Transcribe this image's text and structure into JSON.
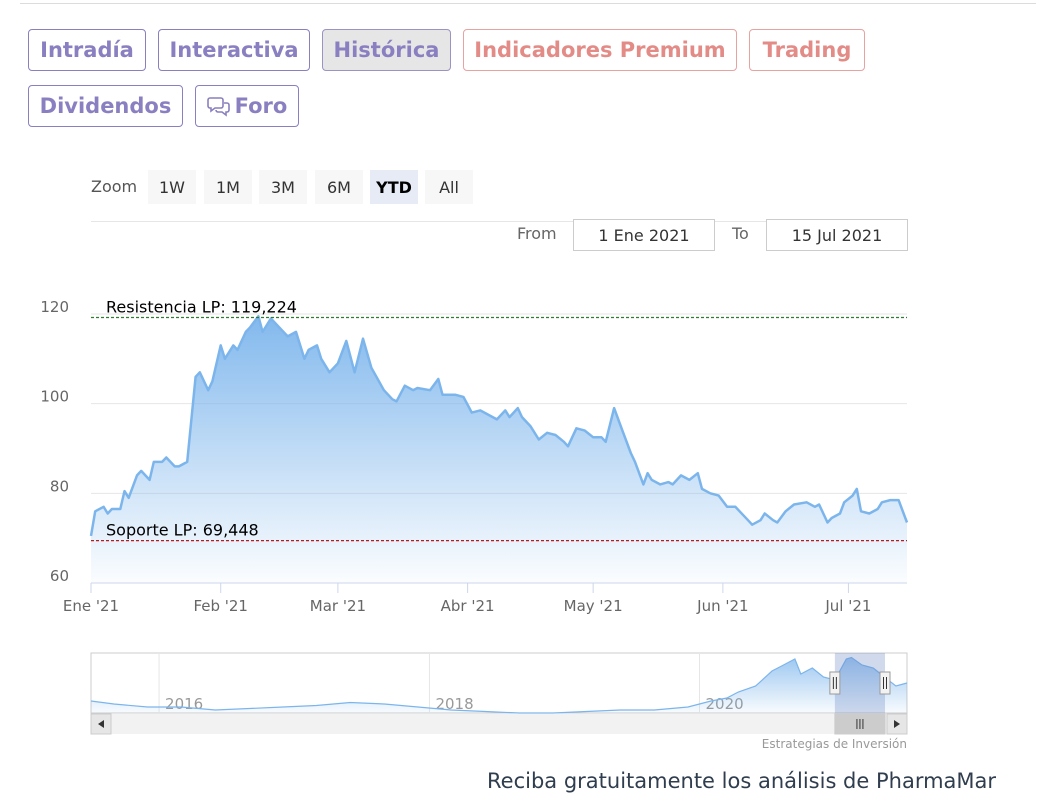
{
  "tabs": [
    {
      "label": "Intradía",
      "style": "normal"
    },
    {
      "label": "Interactiva",
      "style": "normal"
    },
    {
      "label": "Histórica",
      "style": "active"
    },
    {
      "label": "Indicadores Premium",
      "style": "premium"
    },
    {
      "label": "Trading",
      "style": "premium"
    },
    {
      "label": "Dividendos",
      "style": "normal"
    },
    {
      "label": "Foro",
      "style": "normal",
      "icon": "speech-bubbles-icon"
    }
  ],
  "zoom": {
    "label": "Zoom",
    "buttons": [
      "1W",
      "1M",
      "3M",
      "6M",
      "YTD",
      "All"
    ],
    "selected": "YTD"
  },
  "range": {
    "from_label": "From",
    "from_value": "1 Ene 2021",
    "to_label": "To",
    "to_value": "15 Jul 2021"
  },
  "colors": {
    "accent": "#8a7fc0",
    "premium": "#e38b86",
    "series": "#7cb5ec",
    "resistance": "#2e7d32",
    "support": "#b71c1c"
  },
  "chart_data": {
    "type": "area",
    "ylim": [
      60,
      120
    ],
    "yticks": [
      60,
      80,
      100,
      120
    ],
    "x_tick_labels": [
      "Ene '21",
      "Feb '21",
      "Mar '21",
      "Abr '21",
      "May '21",
      "Jun '21",
      "Jul '21"
    ],
    "x_ticks": [
      "2021-01-01",
      "2021-02-01",
      "2021-03-01",
      "2021-04-01",
      "2021-05-01",
      "2021-06-01",
      "2021-07-01"
    ],
    "x_range": [
      "2021-01-01",
      "2021-07-15"
    ],
    "grid": true,
    "series": [
      {
        "values": [
          [
            "2021-01-01",
            70.5
          ],
          [
            "2021-01-02",
            76.0
          ],
          [
            "2021-01-04",
            77.0
          ],
          [
            "2021-01-05",
            75.5
          ],
          [
            "2021-01-06",
            76.5
          ],
          [
            "2021-01-08",
            76.5
          ],
          [
            "2021-01-09",
            80.5
          ],
          [
            "2021-01-10",
            79.0
          ],
          [
            "2021-01-12",
            84.0
          ],
          [
            "2021-01-13",
            85.0
          ],
          [
            "2021-01-15",
            83.0
          ],
          [
            "2021-01-16",
            87.0
          ],
          [
            "2021-01-18",
            87.0
          ],
          [
            "2021-01-19",
            88.0
          ],
          [
            "2021-01-21",
            86.0
          ],
          [
            "2021-01-22",
            86.0
          ],
          [
            "2021-01-24",
            87.0
          ],
          [
            "2021-01-26",
            106.0
          ],
          [
            "2021-01-27",
            107.0
          ],
          [
            "2021-01-29",
            103.0
          ],
          [
            "2021-01-30",
            105.0
          ],
          [
            "2021-02-01",
            113.0
          ],
          [
            "2021-02-02",
            110.0
          ],
          [
            "2021-02-04",
            113.0
          ],
          [
            "2021-02-05",
            112.0
          ],
          [
            "2021-02-07",
            116.0
          ],
          [
            "2021-02-08",
            117.0
          ],
          [
            "2021-02-10",
            119.5
          ],
          [
            "2021-02-11",
            116.0
          ],
          [
            "2021-02-13",
            119.0
          ],
          [
            "2021-02-15",
            117.0
          ],
          [
            "2021-02-17",
            115.0
          ],
          [
            "2021-02-19",
            116.0
          ],
          [
            "2021-02-21",
            110.0
          ],
          [
            "2021-02-22",
            112.0
          ],
          [
            "2021-02-24",
            113.0
          ],
          [
            "2021-02-25",
            110.0
          ],
          [
            "2021-02-27",
            107.0
          ],
          [
            "2021-03-01",
            109.0
          ],
          [
            "2021-03-03",
            114.0
          ],
          [
            "2021-03-05",
            107.0
          ],
          [
            "2021-03-07",
            114.5
          ],
          [
            "2021-03-09",
            108.0
          ],
          [
            "2021-03-12",
            103.0
          ],
          [
            "2021-03-14",
            101.0
          ],
          [
            "2021-03-15",
            100.5
          ],
          [
            "2021-03-17",
            104.0
          ],
          [
            "2021-03-19",
            103.0
          ],
          [
            "2021-03-20",
            103.5
          ],
          [
            "2021-03-23",
            103.0
          ],
          [
            "2021-03-25",
            105.5
          ],
          [
            "2021-03-26",
            102.0
          ],
          [
            "2021-03-29",
            102.0
          ],
          [
            "2021-03-31",
            101.5
          ],
          [
            "2021-04-02",
            98.0
          ],
          [
            "2021-04-04",
            98.5
          ],
          [
            "2021-04-05",
            98.0
          ],
          [
            "2021-04-07",
            97.0
          ],
          [
            "2021-04-08",
            96.5
          ],
          [
            "2021-04-10",
            98.5
          ],
          [
            "2021-04-11",
            97.0
          ],
          [
            "2021-04-13",
            99.0
          ],
          [
            "2021-04-14",
            97.0
          ],
          [
            "2021-04-16",
            95.0
          ],
          [
            "2021-04-18",
            92.0
          ],
          [
            "2021-04-20",
            93.5
          ],
          [
            "2021-04-22",
            93.0
          ],
          [
            "2021-04-24",
            91.5
          ],
          [
            "2021-04-25",
            90.5
          ],
          [
            "2021-04-27",
            94.5
          ],
          [
            "2021-04-29",
            94.0
          ],
          [
            "2021-05-01",
            92.5
          ],
          [
            "2021-05-03",
            92.5
          ],
          [
            "2021-05-04",
            91.5
          ],
          [
            "2021-05-06",
            99.0
          ],
          [
            "2021-05-08",
            94.0
          ],
          [
            "2021-05-10",
            89.0
          ],
          [
            "2021-05-11",
            87.0
          ],
          [
            "2021-05-13",
            82.0
          ],
          [
            "2021-05-14",
            84.5
          ],
          [
            "2021-05-15",
            83.0
          ],
          [
            "2021-05-17",
            82.0
          ],
          [
            "2021-05-19",
            82.5
          ],
          [
            "2021-05-20",
            82.0
          ],
          [
            "2021-05-22",
            84.0
          ],
          [
            "2021-05-24",
            83.0
          ],
          [
            "2021-05-26",
            84.5
          ],
          [
            "2021-05-27",
            81.0
          ],
          [
            "2021-05-29",
            80.0
          ],
          [
            "2021-05-31",
            79.5
          ],
          [
            "2021-06-02",
            77.0
          ],
          [
            "2021-06-04",
            77.0
          ],
          [
            "2021-06-05",
            76.0
          ],
          [
            "2021-06-07",
            74.0
          ],
          [
            "2021-06-08",
            73.0
          ],
          [
            "2021-06-10",
            74.0
          ],
          [
            "2021-06-11",
            75.5
          ],
          [
            "2021-06-13",
            74.0
          ],
          [
            "2021-06-14",
            73.5
          ],
          [
            "2021-06-16",
            76.0
          ],
          [
            "2021-06-18",
            77.5
          ],
          [
            "2021-06-21",
            78.0
          ],
          [
            "2021-06-23",
            77.0
          ],
          [
            "2021-06-24",
            77.5
          ],
          [
            "2021-06-26",
            73.5
          ],
          [
            "2021-06-27",
            74.5
          ],
          [
            "2021-06-29",
            75.5
          ],
          [
            "2021-06-30",
            78.0
          ],
          [
            "2021-07-02",
            79.5
          ],
          [
            "2021-07-03",
            81.0
          ],
          [
            "2021-07-04",
            76.0
          ],
          [
            "2021-07-06",
            75.5
          ],
          [
            "2021-07-08",
            76.5
          ],
          [
            "2021-07-09",
            78.0
          ],
          [
            "2021-07-11",
            78.5
          ],
          [
            "2021-07-13",
            78.5
          ],
          [
            "2021-07-14",
            76.0
          ],
          [
            "2021-07-15",
            73.5
          ]
        ]
      }
    ],
    "annotations": [
      {
        "label": "Resistencia LP: 119,224",
        "value": 119.224,
        "color": "#2e7d32"
      },
      {
        "label": "Soporte LP: 69,448",
        "value": 69.448,
        "color": "#b71c1c"
      }
    ],
    "navigator": {
      "year_labels": [
        "2016",
        "2018",
        "2020"
      ],
      "year_ticks": [
        "2016-01-01",
        "2018-01-01",
        "2020-01-01"
      ],
      "x_range": [
        "2015-07-01",
        "2021-07-15"
      ],
      "values": [
        [
          "2015-07-01",
          4
        ],
        [
          "2015-09-01",
          3
        ],
        [
          "2015-12-01",
          2
        ],
        [
          "2016-03-01",
          2
        ],
        [
          "2016-06-01",
          1
        ],
        [
          "2016-09-01",
          1.5
        ],
        [
          "2016-12-01",
          2
        ],
        [
          "2017-03-01",
          2.5
        ],
        [
          "2017-06-01",
          3.5
        ],
        [
          "2017-09-01",
          3
        ],
        [
          "2017-12-01",
          2
        ],
        [
          "2018-03-01",
          1
        ],
        [
          "2018-06-01",
          0.5
        ],
        [
          "2018-09-01",
          0
        ],
        [
          "2018-12-01",
          0
        ],
        [
          "2019-03-01",
          0.5
        ],
        [
          "2019-06-01",
          1
        ],
        [
          "2019-09-01",
          1
        ],
        [
          "2019-12-01",
          2
        ],
        [
          "2020-02-01",
          4
        ],
        [
          "2020-03-15",
          5
        ],
        [
          "2020-04-15",
          7
        ],
        [
          "2020-06-01",
          9
        ],
        [
          "2020-07-15",
          14
        ],
        [
          "2020-08-15",
          16
        ],
        [
          "2020-09-15",
          18
        ],
        [
          "2020-10-01",
          13
        ],
        [
          "2020-11-01",
          15
        ],
        [
          "2020-12-01",
          12
        ],
        [
          "2021-01-01",
          11
        ],
        [
          "2021-02-01",
          18
        ],
        [
          "2021-02-15",
          18.5
        ],
        [
          "2021-03-15",
          16
        ],
        [
          "2021-04-15",
          15
        ],
        [
          "2021-05-15",
          12
        ],
        [
          "2021-06-15",
          9
        ],
        [
          "2021-07-15",
          10
        ]
      ],
      "selection": [
        "2021-01-01",
        "2021-07-15"
      ]
    }
  },
  "credits": "Estrategias de Inversión",
  "cta": "Reciba gratuitamente los análisis de PharmaMar"
}
